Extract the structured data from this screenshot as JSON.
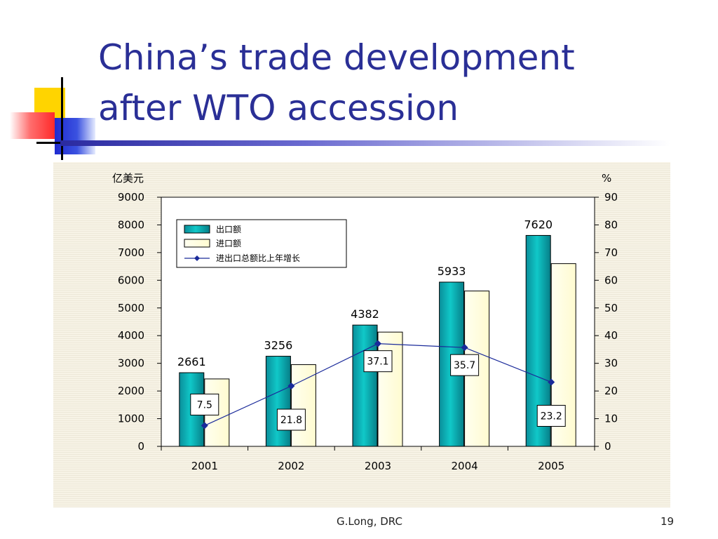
{
  "slide": {
    "title": "China’s trade development\nafter WTO accession",
    "footer_source": "G.Long, DRC",
    "page_number": "19"
  },
  "colors": {
    "title": "#2a2f96",
    "export_bar": "#10c8c8",
    "import_bar": "#fffbd0",
    "growth_line": "#1a2a9a"
  },
  "chart_data": {
    "type": "bar",
    "categories": [
      "2001",
      "2002",
      "2003",
      "2004",
      "2005"
    ],
    "series": [
      {
        "name": "出口额",
        "type": "bar",
        "axis": "left",
        "values": [
          2661,
          3256,
          4382,
          5933,
          7620
        ],
        "data_labels": [
          "2661",
          "3256",
          "4382",
          "5933",
          "7620"
        ]
      },
      {
        "name": "进口额",
        "type": "bar",
        "axis": "left",
        "values": [
          2436,
          2952,
          4128,
          5612,
          6601
        ]
      },
      {
        "name": "进出口总额比上年增长",
        "type": "line",
        "axis": "right",
        "values": [
          7.5,
          21.8,
          37.1,
          35.7,
          23.2
        ],
        "data_labels": [
          "7.5",
          "21.8",
          "37.1",
          "35.7",
          "23.2"
        ]
      }
    ],
    "y_left": {
      "label": "亿美元",
      "min": 0,
      "max": 9000,
      "ticks": [
        "0",
        "1000",
        "2000",
        "3000",
        "4000",
        "5000",
        "6000",
        "7000",
        "8000",
        "9000"
      ]
    },
    "y_right": {
      "label": "%",
      "min": 0,
      "max": 90,
      "ticks": [
        "0",
        "10",
        "20",
        "30",
        "40",
        "50",
        "60",
        "70",
        "80",
        "90"
      ]
    },
    "legend_position": "top-left",
    "grid": false
  }
}
